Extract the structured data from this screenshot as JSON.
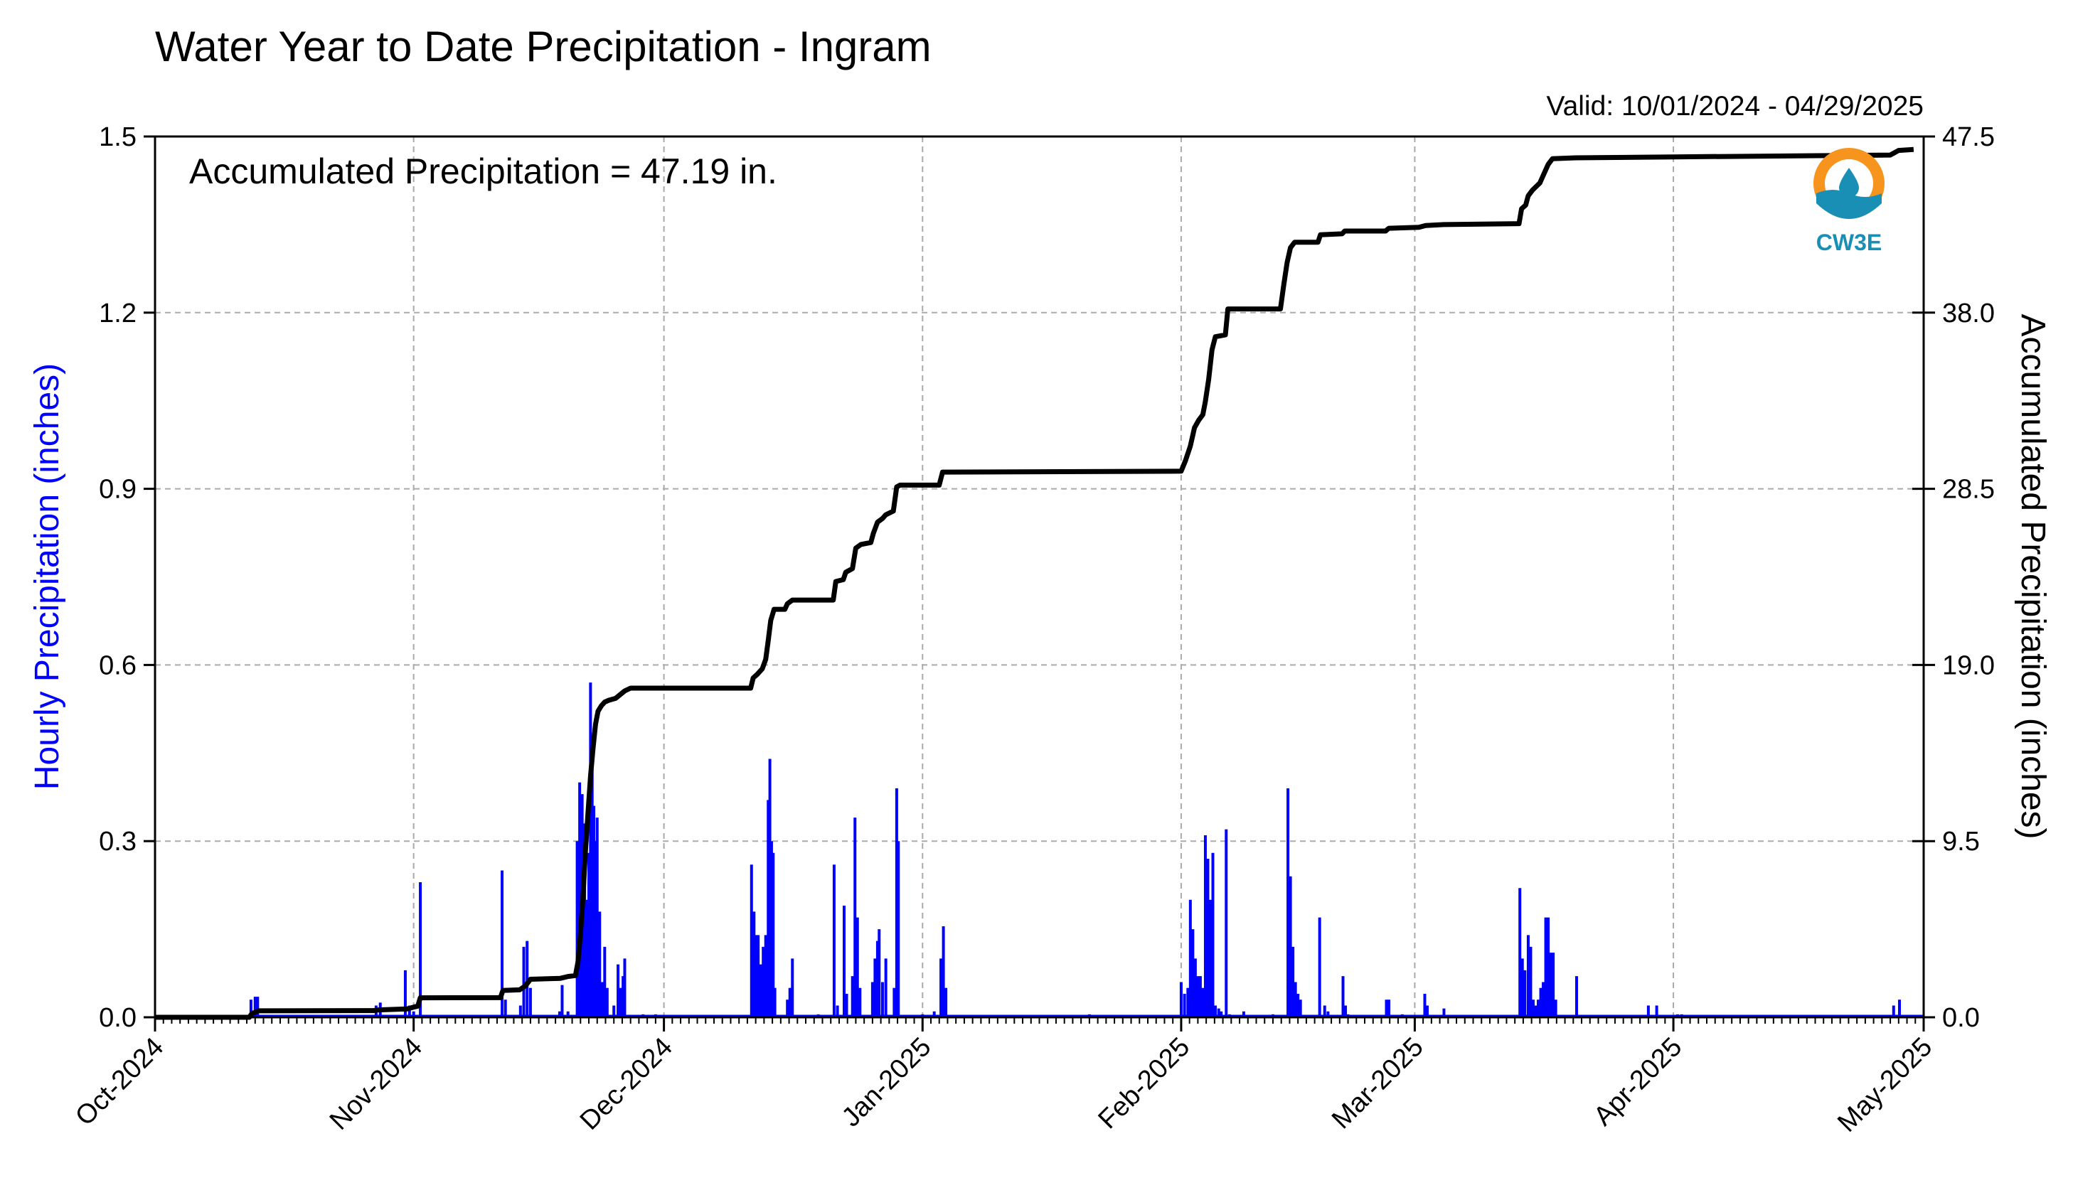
{
  "chart_data": {
    "type": "bar",
    "title": "Water Year to Date Precipitation - Ingram",
    "subtitle": "Valid: 10/01/2024 - 04/29/2025",
    "annotation": "Accumulated Precipitation = 47.19 in.",
    "ylabel_left": "Hourly Precipitation (inches)",
    "ylabel_right": "Accumulated Precipitation (inches)",
    "x_range_days": [
      0,
      212
    ],
    "ylim_left": [
      0,
      1.5
    ],
    "ylim_right": [
      0,
      47.5
    ],
    "grid": true,
    "x_ticks": [
      {
        "day": 0,
        "label": "Oct-2024"
      },
      {
        "day": 31,
        "label": "Nov-2024"
      },
      {
        "day": 61,
        "label": "Dec-2024"
      },
      {
        "day": 92,
        "label": "Jan-2025"
      },
      {
        "day": 123,
        "label": "Feb-2025"
      },
      {
        "day": 151,
        "label": "Mar-2025"
      },
      {
        "day": 182,
        "label": "Apr-2025"
      },
      {
        "day": 212,
        "label": "May-2025"
      }
    ],
    "y_ticks_left": [
      "0.0",
      "0.3",
      "0.6",
      "0.9",
      "1.2",
      "1.5"
    ],
    "y_ticks_right": [
      "0.0",
      "9.5",
      "19.0",
      "28.5",
      "38.0",
      "47.5"
    ],
    "series": [
      {
        "name": "Hourly Precipitation",
        "axis": "left",
        "color": "#0000ff",
        "points": [
          [
            11.5,
            0.03
          ],
          [
            12.0,
            0.035
          ],
          [
            12.3,
            0.035
          ],
          [
            26.5,
            0.02
          ],
          [
            27.0,
            0.025
          ],
          [
            30.0,
            0.08
          ],
          [
            30.5,
            0.02
          ],
          [
            31.0,
            0.01
          ],
          [
            31.8,
            0.23
          ],
          [
            41.6,
            0.25
          ],
          [
            42.0,
            0.03
          ],
          [
            43.8,
            0.02
          ],
          [
            44.2,
            0.12
          ],
          [
            44.6,
            0.13
          ],
          [
            45.0,
            0.05
          ],
          [
            48.5,
            0.01
          ],
          [
            48.8,
            0.055
          ],
          [
            49.5,
            0.01
          ],
          [
            50.6,
            0.3
          ],
          [
            50.9,
            0.4
          ],
          [
            51.2,
            0.38
          ],
          [
            51.5,
            0.33
          ],
          [
            51.8,
            0.2
          ],
          [
            52.0,
            0.28
          ],
          [
            52.2,
            0.57
          ],
          [
            52.4,
            0.45
          ],
          [
            52.6,
            0.36
          ],
          [
            52.8,
            0.3
          ],
          [
            53.0,
            0.34
          ],
          [
            53.3,
            0.18
          ],
          [
            53.6,
            0.06
          ],
          [
            53.9,
            0.12
          ],
          [
            54.2,
            0.05
          ],
          [
            55.0,
            0.02
          ],
          [
            55.5,
            0.09
          ],
          [
            55.8,
            0.05
          ],
          [
            56.1,
            0.07
          ],
          [
            56.3,
            0.1
          ],
          [
            58.5,
            0.005
          ],
          [
            60.0,
            0.005
          ],
          [
            71.5,
            0.26
          ],
          [
            71.8,
            0.18
          ],
          [
            72.0,
            0.14
          ],
          [
            72.3,
            0.14
          ],
          [
            72.6,
            0.09
          ],
          [
            72.9,
            0.12
          ],
          [
            73.2,
            0.14
          ],
          [
            73.5,
            0.37
          ],
          [
            73.7,
            0.44
          ],
          [
            73.9,
            0.3
          ],
          [
            74.1,
            0.28
          ],
          [
            74.3,
            0.05
          ],
          [
            75.8,
            0.03
          ],
          [
            76.1,
            0.05
          ],
          [
            76.4,
            0.1
          ],
          [
            79.5,
            0.005
          ],
          [
            81.4,
            0.26
          ],
          [
            81.8,
            0.02
          ],
          [
            82.6,
            0.19
          ],
          [
            82.9,
            0.04
          ],
          [
            83.6,
            0.07
          ],
          [
            83.9,
            0.34
          ],
          [
            84.2,
            0.17
          ],
          [
            84.5,
            0.05
          ],
          [
            86.0,
            0.06
          ],
          [
            86.3,
            0.1
          ],
          [
            86.6,
            0.13
          ],
          [
            86.8,
            0.15
          ],
          [
            87.2,
            0.06
          ],
          [
            87.6,
            0.1
          ],
          [
            88.6,
            0.05
          ],
          [
            88.9,
            0.39
          ],
          [
            89.1,
            0.3
          ],
          [
            92.0,
            0.005
          ],
          [
            93.4,
            0.01
          ],
          [
            94.2,
            0.1
          ],
          [
            94.5,
            0.155
          ],
          [
            94.8,
            0.05
          ],
          [
            112.0,
            0.005
          ],
          [
            123.0,
            0.06
          ],
          [
            123.4,
            0.04
          ],
          [
            123.8,
            0.05
          ],
          [
            124.1,
            0.2
          ],
          [
            124.4,
            0.15
          ],
          [
            124.7,
            0.1
          ],
          [
            125.0,
            0.07
          ],
          [
            125.3,
            0.07
          ],
          [
            125.6,
            0.05
          ],
          [
            125.9,
            0.31
          ],
          [
            126.2,
            0.27
          ],
          [
            126.5,
            0.2
          ],
          [
            126.8,
            0.28
          ],
          [
            127.1,
            0.02
          ],
          [
            127.5,
            0.015
          ],
          [
            127.8,
            0.01
          ],
          [
            128.4,
            0.32
          ],
          [
            128.8,
            0.005
          ],
          [
            130.5,
            0.01
          ],
          [
            134.0,
            0.005
          ],
          [
            135.8,
            0.39
          ],
          [
            136.1,
            0.24
          ],
          [
            136.4,
            0.12
          ],
          [
            136.7,
            0.06
          ],
          [
            137.0,
            0.04
          ],
          [
            137.3,
            0.03
          ],
          [
            139.6,
            0.17
          ],
          [
            140.2,
            0.02
          ],
          [
            140.6,
            0.01
          ],
          [
            142.4,
            0.07
          ],
          [
            142.7,
            0.02
          ],
          [
            143.0,
            0.005
          ],
          [
            147.6,
            0.03
          ],
          [
            147.9,
            0.03
          ],
          [
            149.5,
            0.005
          ],
          [
            152.2,
            0.04
          ],
          [
            152.5,
            0.02
          ],
          [
            154.5,
            0.015
          ],
          [
            163.6,
            0.22
          ],
          [
            163.9,
            0.1
          ],
          [
            164.2,
            0.08
          ],
          [
            164.6,
            0.14
          ],
          [
            164.9,
            0.12
          ],
          [
            165.2,
            0.03
          ],
          [
            165.5,
            0.02
          ],
          [
            165.8,
            0.03
          ],
          [
            166.1,
            0.05
          ],
          [
            166.4,
            0.06
          ],
          [
            166.7,
            0.17
          ],
          [
            167.0,
            0.17
          ],
          [
            167.3,
            0.11
          ],
          [
            167.6,
            0.11
          ],
          [
            167.9,
            0.03
          ],
          [
            170.4,
            0.07
          ],
          [
            179.0,
            0.02
          ],
          [
            180.0,
            0.02
          ],
          [
            182.5,
            0.005
          ],
          [
            183.0,
            0.005
          ],
          [
            208.4,
            0.02
          ],
          [
            209.1,
            0.03
          ]
        ]
      },
      {
        "name": "Accumulated Precipitation",
        "axis": "right",
        "color": "#000000",
        "points": [
          [
            0,
            0
          ],
          [
            11.3,
            0
          ],
          [
            11.6,
            0.2
          ],
          [
            12.4,
            0.35
          ],
          [
            26.2,
            0.36
          ],
          [
            26.8,
            0.4
          ],
          [
            30.2,
            0.45
          ],
          [
            31.0,
            0.55
          ],
          [
            31.5,
            0.6
          ],
          [
            31.8,
            1.05
          ],
          [
            41.4,
            1.06
          ],
          [
            41.7,
            1.45
          ],
          [
            43.7,
            1.48
          ],
          [
            44.4,
            1.7
          ],
          [
            45.0,
            2.05
          ],
          [
            48.6,
            2.1
          ],
          [
            49.5,
            2.2
          ],
          [
            50.4,
            2.25
          ],
          [
            50.7,
            3.0
          ],
          [
            51.0,
            4.5
          ],
          [
            51.3,
            6.5
          ],
          [
            51.6,
            9.0
          ],
          [
            51.9,
            11.0
          ],
          [
            52.2,
            13.0
          ],
          [
            52.5,
            14.5
          ],
          [
            52.8,
            15.8
          ],
          [
            53.1,
            16.5
          ],
          [
            53.5,
            16.8
          ],
          [
            53.9,
            17.0
          ],
          [
            54.4,
            17.1
          ],
          [
            55.2,
            17.2
          ],
          [
            56.3,
            17.6
          ],
          [
            57.0,
            17.75
          ],
          [
            71.4,
            17.75
          ],
          [
            71.7,
            18.3
          ],
          [
            72.2,
            18.5
          ],
          [
            72.8,
            18.8
          ],
          [
            73.2,
            19.3
          ],
          [
            73.5,
            20.3
          ],
          [
            73.8,
            21.4
          ],
          [
            74.2,
            22.0
          ],
          [
            75.5,
            22.0
          ],
          [
            75.8,
            22.3
          ],
          [
            76.4,
            22.5
          ],
          [
            81.3,
            22.5
          ],
          [
            81.6,
            23.5
          ],
          [
            82.5,
            23.6
          ],
          [
            82.8,
            24.0
          ],
          [
            83.6,
            24.2
          ],
          [
            84.0,
            25.3
          ],
          [
            84.6,
            25.5
          ],
          [
            85.8,
            25.6
          ],
          [
            86.1,
            26.1
          ],
          [
            86.6,
            26.7
          ],
          [
            87.2,
            26.9
          ],
          [
            87.6,
            27.1
          ],
          [
            88.5,
            27.3
          ],
          [
            88.9,
            28.6
          ],
          [
            89.3,
            28.7
          ],
          [
            94.0,
            28.7
          ],
          [
            94.4,
            29.4
          ],
          [
            123.0,
            29.45
          ],
          [
            123.5,
            30.0
          ],
          [
            124.1,
            30.8
          ],
          [
            124.6,
            31.8
          ],
          [
            125.1,
            32.2
          ],
          [
            125.6,
            32.5
          ],
          [
            125.9,
            33.2
          ],
          [
            126.3,
            34.4
          ],
          [
            126.7,
            36.0
          ],
          [
            127.1,
            36.7
          ],
          [
            128.3,
            36.8
          ],
          [
            128.6,
            38.2
          ],
          [
            134.9,
            38.2
          ],
          [
            135.3,
            39.5
          ],
          [
            135.7,
            40.7
          ],
          [
            136.1,
            41.5
          ],
          [
            136.6,
            41.8
          ],
          [
            139.4,
            41.8
          ],
          [
            139.7,
            42.2
          ],
          [
            142.3,
            42.25
          ],
          [
            142.6,
            42.4
          ],
          [
            147.5,
            42.4
          ],
          [
            147.9,
            42.55
          ],
          [
            151.5,
            42.6
          ],
          [
            152.3,
            42.7
          ],
          [
            154.5,
            42.75
          ],
          [
            163.5,
            42.8
          ],
          [
            163.8,
            43.6
          ],
          [
            164.3,
            43.8
          ],
          [
            164.6,
            44.3
          ],
          [
            165.1,
            44.6
          ],
          [
            166.0,
            45.0
          ],
          [
            166.5,
            45.5
          ],
          [
            167.0,
            46.0
          ],
          [
            167.5,
            46.3
          ],
          [
            170.3,
            46.35
          ],
          [
            182.0,
            46.4
          ],
          [
            208.0,
            46.5
          ],
          [
            209.0,
            46.75
          ],
          [
            210.8,
            46.8
          ]
        ]
      }
    ]
  },
  "logo": {
    "text": "CW3E",
    "color_orange": "#f7941d",
    "color_teal": "#1a8fb5"
  }
}
